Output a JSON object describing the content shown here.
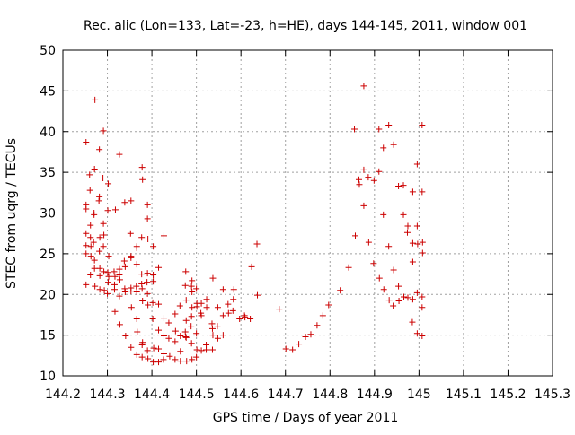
{
  "chart_data": {
    "type": "scatter",
    "title": "Rec. alic (Lon=133, Lat=-23, h=HE), days 144-145, 2011, window 001",
    "xlabel": "GPS time / Days of year 2011",
    "ylabel": "STEC from uqrg / TECUs",
    "xlim": [
      144.2,
      145.3
    ],
    "ylim": [
      10,
      50
    ],
    "xticks": [
      144.2,
      144.3,
      144.4,
      144.5,
      144.6,
      144.7,
      144.8,
      144.9,
      145.0,
      145.1,
      145.2,
      145.3
    ],
    "xtick_labels": [
      "144.2",
      "144.3",
      "144.4",
      "144.5",
      "144.6",
      "144.7",
      "144.8",
      "144.9",
      "145",
      "145.1",
      "145.2",
      "145.3"
    ],
    "yticks": [
      10,
      15,
      20,
      25,
      30,
      35,
      40,
      45,
      50
    ],
    "ytick_labels": [
      "10",
      "15",
      "20",
      "25",
      "30",
      "35",
      "40",
      "45",
      "50"
    ],
    "grid": true,
    "marker": "+",
    "marker_color": "#cc0000",
    "grid_color": "#a0a0a0",
    "points": [
      [
        144.252,
        38.7
      ],
      [
        144.252,
        31.0
      ],
      [
        144.252,
        30.5
      ],
      [
        144.252,
        27.5
      ],
      [
        144.252,
        26.0
      ],
      [
        144.252,
        25.0
      ],
      [
        144.252,
        21.2
      ],
      [
        144.26,
        34.7
      ],
      [
        144.261,
        32.8
      ],
      [
        144.262,
        28.5
      ],
      [
        144.262,
        27.0
      ],
      [
        144.263,
        25.9
      ],
      [
        144.263,
        24.7
      ],
      [
        144.262,
        22.4
      ],
      [
        144.272,
        43.9
      ],
      [
        144.271,
        35.4
      ],
      [
        144.27,
        30.0
      ],
      [
        144.27,
        29.8
      ],
      [
        144.269,
        26.4
      ],
      [
        144.271,
        24.2
      ],
      [
        144.271,
        23.2
      ],
      [
        144.272,
        21.0
      ],
      [
        144.282,
        37.8
      ],
      [
        144.282,
        32.0
      ],
      [
        144.281,
        31.5
      ],
      [
        144.283,
        27.0
      ],
      [
        144.282,
        25.3
      ],
      [
        144.283,
        23.2
      ],
      [
        144.283,
        22.3
      ],
      [
        144.283,
        20.6
      ],
      [
        144.291,
        40.1
      ],
      [
        144.29,
        34.3
      ],
      [
        144.291,
        28.7
      ],
      [
        144.292,
        27.3
      ],
      [
        144.291,
        25.9
      ],
      [
        144.292,
        22.8
      ],
      [
        144.293,
        20.5
      ],
      [
        144.302,
        33.6
      ],
      [
        144.301,
        30.3
      ],
      [
        144.303,
        24.7
      ],
      [
        144.301,
        22.7
      ],
      [
        144.303,
        22.2
      ],
      [
        144.302,
        21.5
      ],
      [
        144.3,
        20.1
      ],
      [
        144.318,
        30.4
      ],
      [
        144.315,
        22.8
      ],
      [
        144.317,
        22.2
      ],
      [
        144.316,
        21.2
      ],
      [
        144.316,
        20.6
      ],
      [
        144.317,
        17.9
      ],
      [
        144.327,
        37.2
      ],
      [
        144.327,
        23.1
      ],
      [
        144.327,
        22.4
      ],
      [
        144.328,
        21.8
      ],
      [
        144.327,
        19.8
      ],
      [
        144.328,
        16.3
      ],
      [
        144.339,
        31.3
      ],
      [
        144.338,
        24.1
      ],
      [
        144.34,
        23.4
      ],
      [
        144.339,
        20.7
      ],
      [
        144.34,
        20.3
      ],
      [
        144.341,
        14.9
      ],
      [
        144.353,
        31.5
      ],
      [
        144.352,
        27.5
      ],
      [
        144.353,
        24.7
      ],
      [
        144.353,
        24.5
      ],
      [
        144.353,
        20.8
      ],
      [
        144.353,
        20.4
      ],
      [
        144.354,
        18.4
      ],
      [
        144.353,
        13.5
      ],
      [
        144.366,
        25.9
      ],
      [
        144.366,
        25.7
      ],
      [
        144.366,
        23.7
      ],
      [
        144.365,
        21.0
      ],
      [
        144.366,
        20.3
      ],
      [
        144.366,
        17.0
      ],
      [
        144.367,
        15.4
      ],
      [
        144.366,
        12.6
      ],
      [
        144.378,
        35.6
      ],
      [
        144.379,
        34.1
      ],
      [
        144.377,
        27.0
      ],
      [
        144.377,
        22.5
      ],
      [
        144.377,
        21.3
      ],
      [
        144.378,
        20.7
      ],
      [
        144.379,
        19.2
      ],
      [
        144.379,
        14.1
      ],
      [
        144.378,
        13.8
      ],
      [
        144.378,
        12.3
      ],
      [
        144.39,
        31.0
      ],
      [
        144.39,
        29.3
      ],
      [
        144.391,
        26.8
      ],
      [
        144.39,
        22.6
      ],
      [
        144.389,
        21.5
      ],
      [
        144.39,
        20.1
      ],
      [
        144.391,
        18.7
      ],
      [
        144.39,
        13.1
      ],
      [
        144.391,
        12.1
      ],
      [
        144.403,
        25.9
      ],
      [
        144.403,
        22.4
      ],
      [
        144.403,
        21.6
      ],
      [
        144.402,
        19.0
      ],
      [
        144.402,
        17.0
      ],
      [
        144.404,
        13.4
      ],
      [
        144.403,
        11.7
      ],
      [
        144.415,
        23.3
      ],
      [
        144.415,
        18.8
      ],
      [
        144.415,
        15.6
      ],
      [
        144.415,
        13.3
      ],
      [
        144.415,
        11.7
      ],
      [
        144.427,
        27.2
      ],
      [
        144.427,
        17.1
      ],
      [
        144.427,
        14.9
      ],
      [
        144.427,
        12.7
      ],
      [
        144.426,
        12.0
      ],
      [
        144.438,
        16.5
      ],
      [
        144.438,
        14.6
      ],
      [
        144.44,
        12.4
      ],
      [
        144.452,
        17.6
      ],
      [
        144.453,
        15.5
      ],
      [
        144.452,
        14.2
      ],
      [
        144.452,
        12.0
      ],
      [
        144.463,
        18.6
      ],
      [
        144.464,
        14.9
      ],
      [
        144.464,
        13.0
      ],
      [
        144.464,
        11.8
      ],
      [
        144.476,
        22.8
      ],
      [
        144.475,
        21.1
      ],
      [
        144.477,
        19.3
      ],
      [
        144.477,
        16.8
      ],
      [
        144.475,
        15.4
      ],
      [
        144.476,
        14.8
      ],
      [
        144.477,
        14.7
      ],
      [
        144.478,
        11.8
      ],
      [
        144.49,
        21.7
      ],
      [
        144.489,
        21.0
      ],
      [
        144.49,
        20.3
      ],
      [
        144.49,
        18.4
      ],
      [
        144.489,
        17.3
      ],
      [
        144.488,
        16.1
      ],
      [
        144.489,
        14.0
      ],
      [
        144.49,
        12.0
      ],
      [
        144.5,
        20.7
      ],
      [
        144.501,
        18.9
      ],
      [
        144.501,
        18.5
      ],
      [
        144.5,
        15.2
      ],
      [
        144.501,
        13.2
      ],
      [
        144.5,
        12.3
      ],
      [
        144.511,
        18.9
      ],
      [
        144.51,
        17.7
      ],
      [
        144.511,
        17.4
      ],
      [
        144.511,
        13.1
      ],
      [
        144.523,
        19.4
      ],
      [
        144.523,
        18.4
      ],
      [
        144.522,
        13.8
      ],
      [
        144.522,
        13.2
      ],
      [
        144.537,
        22.0
      ],
      [
        144.535,
        16.4
      ],
      [
        144.536,
        15.8
      ],
      [
        144.537,
        15.0
      ],
      [
        144.536,
        13.2
      ],
      [
        144.548,
        18.4
      ],
      [
        144.547,
        16.1
      ],
      [
        144.548,
        14.6
      ],
      [
        144.56,
        20.6
      ],
      [
        144.56,
        17.4
      ],
      [
        144.56,
        15.0
      ],
      [
        144.571,
        18.8
      ],
      [
        144.572,
        17.7
      ],
      [
        144.584,
        20.6
      ],
      [
        144.583,
        19.4
      ],
      [
        144.582,
        18.0
      ],
      [
        144.597,
        17.0
      ],
      [
        144.608,
        17.4
      ],
      [
        144.609,
        17.2
      ],
      [
        144.624,
        23.4
      ],
      [
        144.621,
        17.0
      ],
      [
        144.636,
        26.2
      ],
      [
        144.637,
        19.9
      ],
      [
        144.686,
        18.2
      ],
      [
        144.701,
        13.3
      ],
      [
        144.716,
        13.2
      ],
      [
        144.73,
        13.9
      ],
      [
        144.745,
        14.8
      ],
      [
        144.757,
        15.1
      ],
      [
        144.771,
        16.2
      ],
      [
        144.784,
        17.4
      ],
      [
        144.797,
        18.7
      ],
      [
        144.823,
        20.5
      ],
      [
        144.842,
        23.3
      ],
      [
        144.855,
        40.3
      ],
      [
        144.857,
        27.2
      ],
      [
        144.865,
        34.1
      ],
      [
        144.866,
        33.5
      ],
      [
        144.876,
        45.6
      ],
      [
        144.876,
        35.3
      ],
      [
        144.876,
        30.9
      ],
      [
        144.886,
        34.4
      ],
      [
        144.887,
        26.4
      ],
      [
        144.899,
        34.0
      ],
      [
        144.898,
        23.8
      ],
      [
        144.91,
        40.3
      ],
      [
        144.91,
        35.1
      ],
      [
        144.911,
        22.0
      ],
      [
        144.92,
        38.0
      ],
      [
        144.92,
        29.8
      ],
      [
        144.921,
        20.6
      ],
      [
        144.932,
        40.8
      ],
      [
        144.932,
        25.9
      ],
      [
        144.933,
        19.3
      ],
      [
        144.943,
        38.4
      ],
      [
        144.943,
        23.0
      ],
      [
        144.942,
        18.6
      ],
      [
        144.954,
        33.3
      ],
      [
        144.954,
        21.0
      ],
      [
        144.955,
        19.2
      ],
      [
        144.965,
        33.4
      ],
      [
        144.965,
        29.8
      ],
      [
        144.966,
        19.7
      ],
      [
        144.975,
        28.4
      ],
      [
        144.974,
        27.6
      ],
      [
        144.975,
        19.6
      ],
      [
        144.986,
        32.6
      ],
      [
        144.986,
        26.3
      ],
      [
        144.986,
        24.0
      ],
      [
        144.986,
        19.4
      ],
      [
        144.985,
        16.6
      ],
      [
        144.996,
        36.0
      ],
      [
        144.996,
        28.4
      ],
      [
        144.997,
        26.2
      ],
      [
        144.996,
        20.2
      ],
      [
        144.996,
        15.2
      ],
      [
        145.007,
        40.8
      ],
      [
        145.007,
        32.6
      ],
      [
        145.008,
        26.4
      ],
      [
        145.008,
        25.1
      ],
      [
        145.007,
        19.7
      ],
      [
        145.007,
        18.4
      ],
      [
        145.007,
        14.9
      ]
    ]
  }
}
